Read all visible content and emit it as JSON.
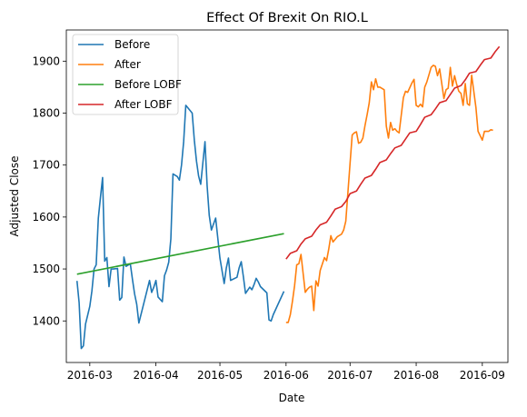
{
  "chart_data": {
    "type": "line",
    "title": "Effect Of Brexit On RIO.L",
    "xlabel": "Date",
    "ylabel": "Adjusted Close",
    "xlim": [
      "2016-02-19",
      "2016-09-13"
    ],
    "ylim": [
      1320,
      1960
    ],
    "x_ticks": [
      "2016-03-01",
      "2016-04-01",
      "2016-05-01",
      "2016-06-01",
      "2016-07-01",
      "2016-08-01",
      "2016-09-01"
    ],
    "x_tick_labels": [
      "2016-03",
      "2016-04",
      "2016-05",
      "2016-06",
      "2016-07",
      "2016-08",
      "2016-09"
    ],
    "y_ticks": [
      1400,
      1500,
      1600,
      1700,
      1800,
      1900
    ],
    "y_tick_labels": [
      "1400",
      "1500",
      "1600",
      "1700",
      "1800",
      "1900"
    ],
    "legend_position": "upper left",
    "grid": false,
    "series": [
      {
        "name": "Before",
        "color": "#1f77b4",
        "x": [
          "2016-02-24",
          "2016-02-25",
          "2016-02-26",
          "2016-02-27",
          "2016-02-28",
          "2016-03-01",
          "2016-03-02",
          "2016-03-03",
          "2016-03-04",
          "2016-03-05",
          "2016-03-06",
          "2016-03-07",
          "2016-03-08",
          "2016-03-09",
          "2016-03-10",
          "2016-03-11",
          "2016-03-12",
          "2016-03-14",
          "2016-03-15",
          "2016-03-16",
          "2016-03-17",
          "2016-03-18",
          "2016-03-20",
          "2016-03-21",
          "2016-03-22",
          "2016-03-23",
          "2016-03-24",
          "2016-03-29",
          "2016-03-30",
          "2016-03-31",
          "2016-04-01",
          "2016-04-02",
          "2016-04-04",
          "2016-04-05",
          "2016-04-06",
          "2016-04-07",
          "2016-04-08",
          "2016-04-09",
          "2016-04-11",
          "2016-04-12",
          "2016-04-13",
          "2016-04-14",
          "2016-04-15",
          "2016-04-18",
          "2016-04-19",
          "2016-04-20",
          "2016-04-21",
          "2016-04-22",
          "2016-04-24",
          "2016-04-25",
          "2016-04-26",
          "2016-04-27",
          "2016-04-29",
          "2016-05-01",
          "2016-05-03",
          "2016-05-04",
          "2016-05-05",
          "2016-05-06",
          "2016-05-09",
          "2016-05-10",
          "2016-05-11",
          "2016-05-12",
          "2016-05-13",
          "2016-05-15",
          "2016-05-16",
          "2016-05-17",
          "2016-05-18",
          "2016-05-19",
          "2016-05-20",
          "2016-05-23",
          "2016-05-24",
          "2016-05-25",
          "2016-05-26",
          "2016-05-31"
        ],
        "y": [
          1477,
          1435,
          1347,
          1352,
          1394,
          1428,
          1458,
          1500,
          1508,
          1598,
          1638,
          1676,
          1515,
          1522,
          1466,
          1500,
          1500,
          1501,
          1440,
          1445,
          1523,
          1505,
          1510,
          1480,
          1452,
          1432,
          1396,
          1478,
          1455,
          1465,
          1478,
          1446,
          1437,
          1487,
          1498,
          1513,
          1558,
          1683,
          1678,
          1671,
          1700,
          1745,
          1815,
          1800,
          1748,
          1708,
          1679,
          1663,
          1745,
          1660,
          1603,
          1575,
          1598,
          1521,
          1472,
          1502,
          1521,
          1478,
          1484,
          1502,
          1514,
          1485,
          1453,
          1465,
          1460,
          1470,
          1482,
          1475,
          1466,
          1454,
          1402,
          1400,
          1412,
          1457
        ]
      },
      {
        "name": "After",
        "color": "#ff7f0e",
        "x": [
          "2016-06-01",
          "2016-06-02",
          "2016-06-03",
          "2016-06-04",
          "2016-06-05",
          "2016-06-06",
          "2016-06-07",
          "2016-06-08",
          "2016-06-10",
          "2016-06-11",
          "2016-06-12",
          "2016-06-13",
          "2016-06-14",
          "2016-06-15",
          "2016-06-16",
          "2016-06-17",
          "2016-06-19",
          "2016-06-20",
          "2016-06-21",
          "2016-06-22",
          "2016-06-23",
          "2016-06-25",
          "2016-06-27",
          "2016-06-28",
          "2016-06-29",
          "2016-07-01",
          "2016-07-02",
          "2016-07-03",
          "2016-07-04",
          "2016-07-05",
          "2016-07-06",
          "2016-07-07",
          "2016-07-08",
          "2016-07-09",
          "2016-07-10",
          "2016-07-11",
          "2016-07-12",
          "2016-07-13",
          "2016-07-14",
          "2016-07-15",
          "2016-07-17",
          "2016-07-18",
          "2016-07-19",
          "2016-07-20",
          "2016-07-21",
          "2016-07-22",
          "2016-07-23",
          "2016-07-24",
          "2016-07-26",
          "2016-07-27",
          "2016-07-28",
          "2016-07-30",
          "2016-07-31",
          "2016-08-01",
          "2016-08-02",
          "2016-08-03",
          "2016-08-04",
          "2016-08-05",
          "2016-08-06",
          "2016-08-08",
          "2016-08-09",
          "2016-08-10",
          "2016-08-11",
          "2016-08-12",
          "2016-08-14",
          "2016-08-15",
          "2016-08-16",
          "2016-08-17",
          "2016-08-18",
          "2016-08-19",
          "2016-08-20",
          "2016-08-21",
          "2016-08-22",
          "2016-08-23",
          "2016-08-24",
          "2016-08-25",
          "2016-08-26",
          "2016-08-27",
          "2016-08-29",
          "2016-08-30",
          "2016-09-01",
          "2016-09-02",
          "2016-09-04",
          "2016-09-05",
          "2016-09-06"
        ],
        "y": [
          1397,
          1397,
          1412,
          1438,
          1468,
          1508,
          1510,
          1528,
          1455,
          1461,
          1465,
          1467,
          1420,
          1477,
          1467,
          1497,
          1522,
          1516,
          1538,
          1564,
          1552,
          1562,
          1567,
          1575,
          1592,
          1703,
          1758,
          1762,
          1764,
          1742,
          1744,
          1752,
          1776,
          1797,
          1820,
          1860,
          1845,
          1866,
          1850,
          1850,
          1845,
          1775,
          1752,
          1782,
          1767,
          1770,
          1765,
          1762,
          1830,
          1842,
          1840,
          1858,
          1865,
          1815,
          1812,
          1817,
          1812,
          1850,
          1860,
          1888,
          1892,
          1890,
          1872,
          1885,
          1828,
          1845,
          1848,
          1888,
          1852,
          1872,
          1855,
          1842,
          1838,
          1815,
          1857,
          1818,
          1815,
          1873,
          1811,
          1765,
          1748,
          1765,
          1765,
          1768,
          1767
        ]
      },
      {
        "name": "Before LOBF",
        "color": "#2ca02c",
        "x": [
          "2016-02-24",
          "2016-05-31"
        ],
        "y": [
          1490,
          1568
        ]
      },
      {
        "name": "After LOBF",
        "color": "#d62728",
        "x": [
          "2016-06-01",
          "2016-06-03",
          "2016-06-06",
          "2016-06-08",
          "2016-06-10",
          "2016-06-13",
          "2016-06-15",
          "2016-06-17",
          "2016-06-20",
          "2016-06-22",
          "2016-06-24",
          "2016-06-27",
          "2016-06-29",
          "2016-07-01",
          "2016-07-04",
          "2016-07-06",
          "2016-07-08",
          "2016-07-11",
          "2016-07-13",
          "2016-07-15",
          "2016-07-18",
          "2016-07-20",
          "2016-07-22",
          "2016-07-25",
          "2016-07-27",
          "2016-07-29",
          "2016-08-01",
          "2016-08-03",
          "2016-08-05",
          "2016-08-08",
          "2016-08-10",
          "2016-08-12",
          "2016-08-15",
          "2016-08-17",
          "2016-08-19",
          "2016-08-22",
          "2016-08-24",
          "2016-08-26",
          "2016-08-29",
          "2016-08-31",
          "2016-09-02",
          "2016-09-05",
          "2016-09-07",
          "2016-09-09"
        ],
        "y": [
          1519,
          1530,
          1535,
          1548,
          1558,
          1563,
          1575,
          1585,
          1590,
          1602,
          1615,
          1620,
          1630,
          1645,
          1650,
          1663,
          1675,
          1680,
          1692,
          1705,
          1710,
          1722,
          1733,
          1738,
          1750,
          1762,
          1765,
          1778,
          1792,
          1797,
          1808,
          1820,
          1824,
          1836,
          1848,
          1853,
          1864,
          1877,
          1880,
          1892,
          1903,
          1906,
          1918,
          1928
        ]
      }
    ]
  }
}
